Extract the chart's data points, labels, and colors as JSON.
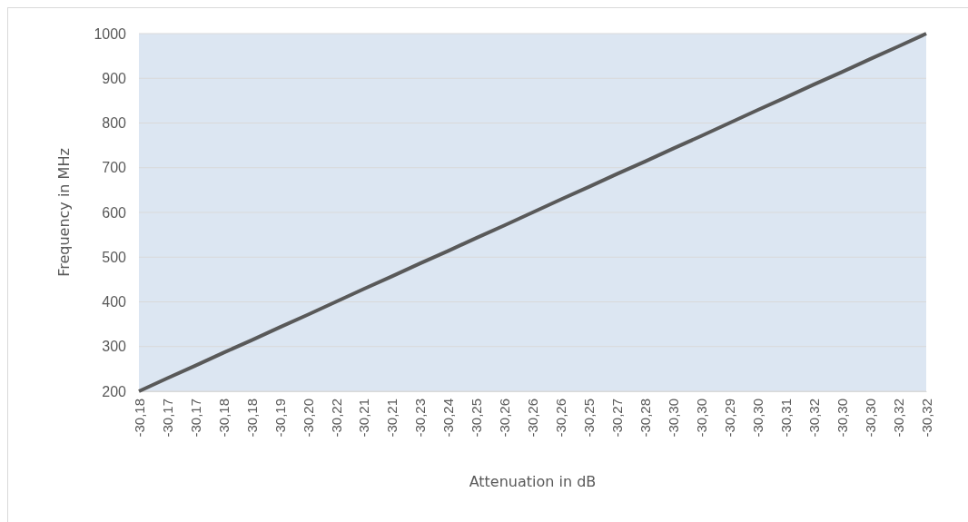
{
  "chart_data": {
    "type": "line",
    "xlabel": "Attenuation in dB",
    "ylabel": "Frequency in MHz",
    "categories": [
      "-30,18",
      "-30,17",
      "-30,17",
      "-30,18",
      "-30,18",
      "-30,19",
      "-30,20",
      "-30,22",
      "-30,21",
      "-30,21",
      "-30,23",
      "-30,24",
      "-30,25",
      "-30,26",
      "-30,26",
      "-30,26",
      "-30,25",
      "-30,27",
      "-30,28",
      "-30,30",
      "-30,30",
      "-30,29",
      "-30,30",
      "-30,31",
      "-30,32",
      "-30,30",
      "-30,30",
      "-30,32",
      "-30,32"
    ],
    "series": [
      {
        "color": "#595959",
        "values": [
          200,
          229,
          257,
          286,
          314,
          343,
          371,
          400,
          429,
          457,
          486,
          514,
          543,
          571,
          600,
          629,
          657,
          686,
          714,
          743,
          771,
          800,
          829,
          857,
          886,
          914,
          943,
          971,
          1000
        ]
      }
    ],
    "ylim": [
      200,
      1000
    ],
    "yticks": [
      200,
      300,
      400,
      500,
      600,
      700,
      800,
      900,
      1000
    ],
    "grid": "y",
    "marker": "none",
    "line_style": "solid"
  }
}
